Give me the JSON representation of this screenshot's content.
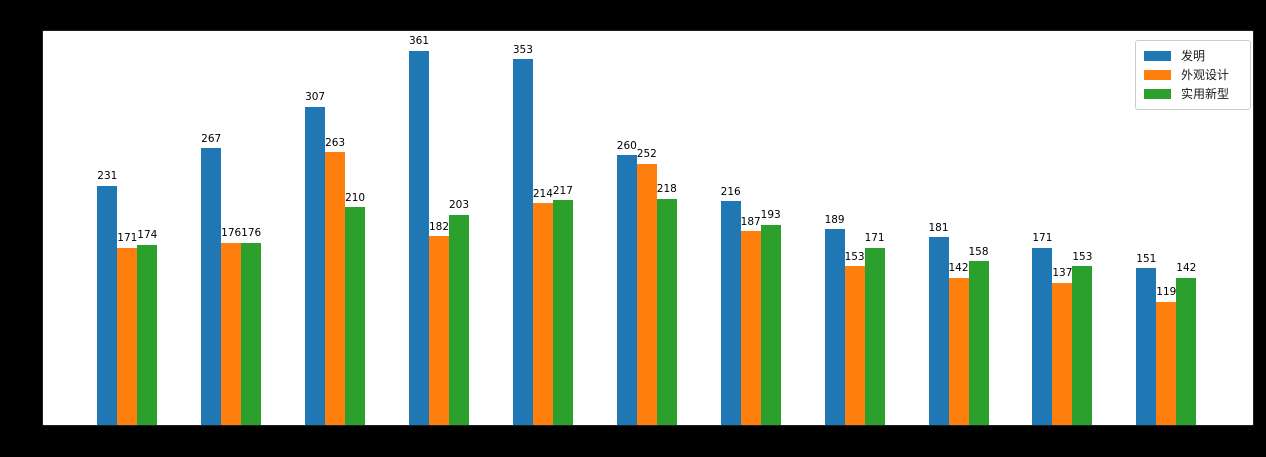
{
  "figure": {
    "background": "#000000",
    "plot_background": "#ffffff"
  },
  "chart_data": {
    "type": "bar",
    "title": "",
    "xlabel": "",
    "ylabel": "",
    "categories": [
      "",
      "",
      "",
      "",
      "",
      "",
      "",
      "",
      "",
      "",
      ""
    ],
    "series": [
      {
        "name": "发明",
        "color": "#1f77b4",
        "values": [
          231,
          267,
          307,
          361,
          353,
          260,
          216,
          189,
          181,
          171,
          151
        ]
      },
      {
        "name": "外观设计",
        "color": "#ff7f0e",
        "values": [
          171,
          176,
          263,
          182,
          214,
          252,
          187,
          153,
          142,
          137,
          119
        ]
      },
      {
        "name": "实用新型",
        "color": "#2ca02c",
        "values": [
          174,
          176,
          210,
          203,
          217,
          218,
          193,
          171,
          158,
          153,
          142
        ]
      }
    ],
    "ylim": [
      0,
      380
    ],
    "grid": false,
    "bar_value_labels": true,
    "legend_position": "upper right",
    "label_color": "#000000"
  }
}
